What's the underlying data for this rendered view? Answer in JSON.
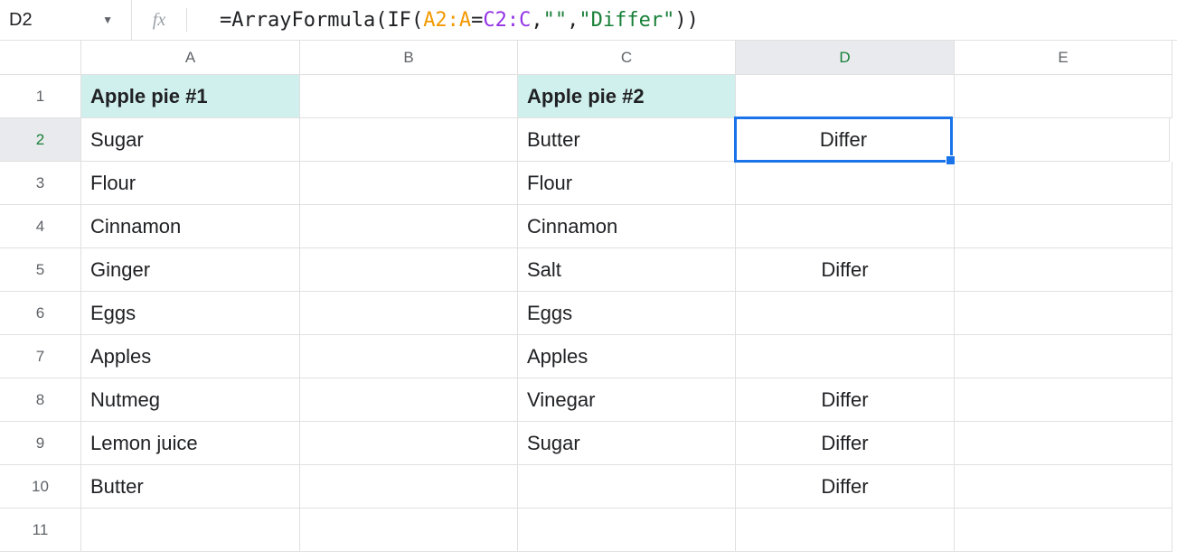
{
  "nameBox": {
    "value": "D2"
  },
  "formulaBar": {
    "fxLabel": "fx",
    "formula": {
      "parts": [
        {
          "text": "=ArrayFormula",
          "class": "fn-black"
        },
        {
          "text": "(",
          "class": "fn-black"
        },
        {
          "text": "IF",
          "class": "fn-black"
        },
        {
          "text": "(",
          "class": "fn-black"
        },
        {
          "text": "A2:A",
          "class": "fn-orange"
        },
        {
          "text": "=",
          "class": "fn-black"
        },
        {
          "text": "C2:C",
          "class": "fn-purple"
        },
        {
          "text": ",",
          "class": "fn-black"
        },
        {
          "text": "\"\"",
          "class": "fn-green"
        },
        {
          "text": ",",
          "class": "fn-black"
        },
        {
          "text": "\"Differ\"",
          "class": "fn-green"
        },
        {
          "text": ")",
          "class": "fn-black"
        },
        {
          "text": ")",
          "class": "fn-black"
        }
      ]
    }
  },
  "columns": [
    "A",
    "B",
    "C",
    "D",
    "E"
  ],
  "selectedCell": {
    "row": 2,
    "col": "D"
  },
  "rows": [
    {
      "num": 1,
      "cells": {
        "A": {
          "value": "Apple pie #1",
          "headerTeal": true
        },
        "B": {
          "value": ""
        },
        "C": {
          "value": "Apple pie #2",
          "headerTeal": true
        },
        "D": {
          "value": ""
        },
        "E": {
          "value": ""
        }
      }
    },
    {
      "num": 2,
      "cells": {
        "A": {
          "value": "Sugar"
        },
        "B": {
          "value": ""
        },
        "C": {
          "value": "Butter"
        },
        "D": {
          "value": "Differ",
          "center": true,
          "selected": true
        },
        "E": {
          "value": ""
        }
      }
    },
    {
      "num": 3,
      "cells": {
        "A": {
          "value": "Flour"
        },
        "B": {
          "value": ""
        },
        "C": {
          "value": "Flour"
        },
        "D": {
          "value": "",
          "center": true
        },
        "E": {
          "value": ""
        }
      }
    },
    {
      "num": 4,
      "cells": {
        "A": {
          "value": "Cinnamon"
        },
        "B": {
          "value": ""
        },
        "C": {
          "value": "Cinnamon"
        },
        "D": {
          "value": "",
          "center": true
        },
        "E": {
          "value": ""
        }
      }
    },
    {
      "num": 5,
      "cells": {
        "A": {
          "value": "Ginger"
        },
        "B": {
          "value": ""
        },
        "C": {
          "value": "Salt"
        },
        "D": {
          "value": "Differ",
          "center": true
        },
        "E": {
          "value": ""
        }
      }
    },
    {
      "num": 6,
      "cells": {
        "A": {
          "value": "Eggs"
        },
        "B": {
          "value": ""
        },
        "C": {
          "value": "Eggs"
        },
        "D": {
          "value": "",
          "center": true
        },
        "E": {
          "value": ""
        }
      }
    },
    {
      "num": 7,
      "cells": {
        "A": {
          "value": "Apples"
        },
        "B": {
          "value": ""
        },
        "C": {
          "value": "Apples"
        },
        "D": {
          "value": "",
          "center": true
        },
        "E": {
          "value": ""
        }
      }
    },
    {
      "num": 8,
      "cells": {
        "A": {
          "value": "Nutmeg"
        },
        "B": {
          "value": ""
        },
        "C": {
          "value": "Vinegar"
        },
        "D": {
          "value": "Differ",
          "center": true
        },
        "E": {
          "value": ""
        }
      }
    },
    {
      "num": 9,
      "cells": {
        "A": {
          "value": "Lemon juice"
        },
        "B": {
          "value": ""
        },
        "C": {
          "value": "Sugar"
        },
        "D": {
          "value": "Differ",
          "center": true
        },
        "E": {
          "value": ""
        }
      }
    },
    {
      "num": 10,
      "cells": {
        "A": {
          "value": "Butter"
        },
        "B": {
          "value": ""
        },
        "C": {
          "value": ""
        },
        "D": {
          "value": "Differ",
          "center": true
        },
        "E": {
          "value": ""
        }
      }
    },
    {
      "num": 11,
      "cells": {
        "A": {
          "value": ""
        },
        "B": {
          "value": ""
        },
        "C": {
          "value": ""
        },
        "D": {
          "value": "",
          "center": true
        },
        "E": {
          "value": ""
        }
      }
    }
  ],
  "colors": {
    "headerTeal": "#d0f0ed",
    "selectedBorder": "#1a73e8",
    "selectedHeaderBg": "#e8eaed",
    "gridLine": "#e0e0e0"
  }
}
